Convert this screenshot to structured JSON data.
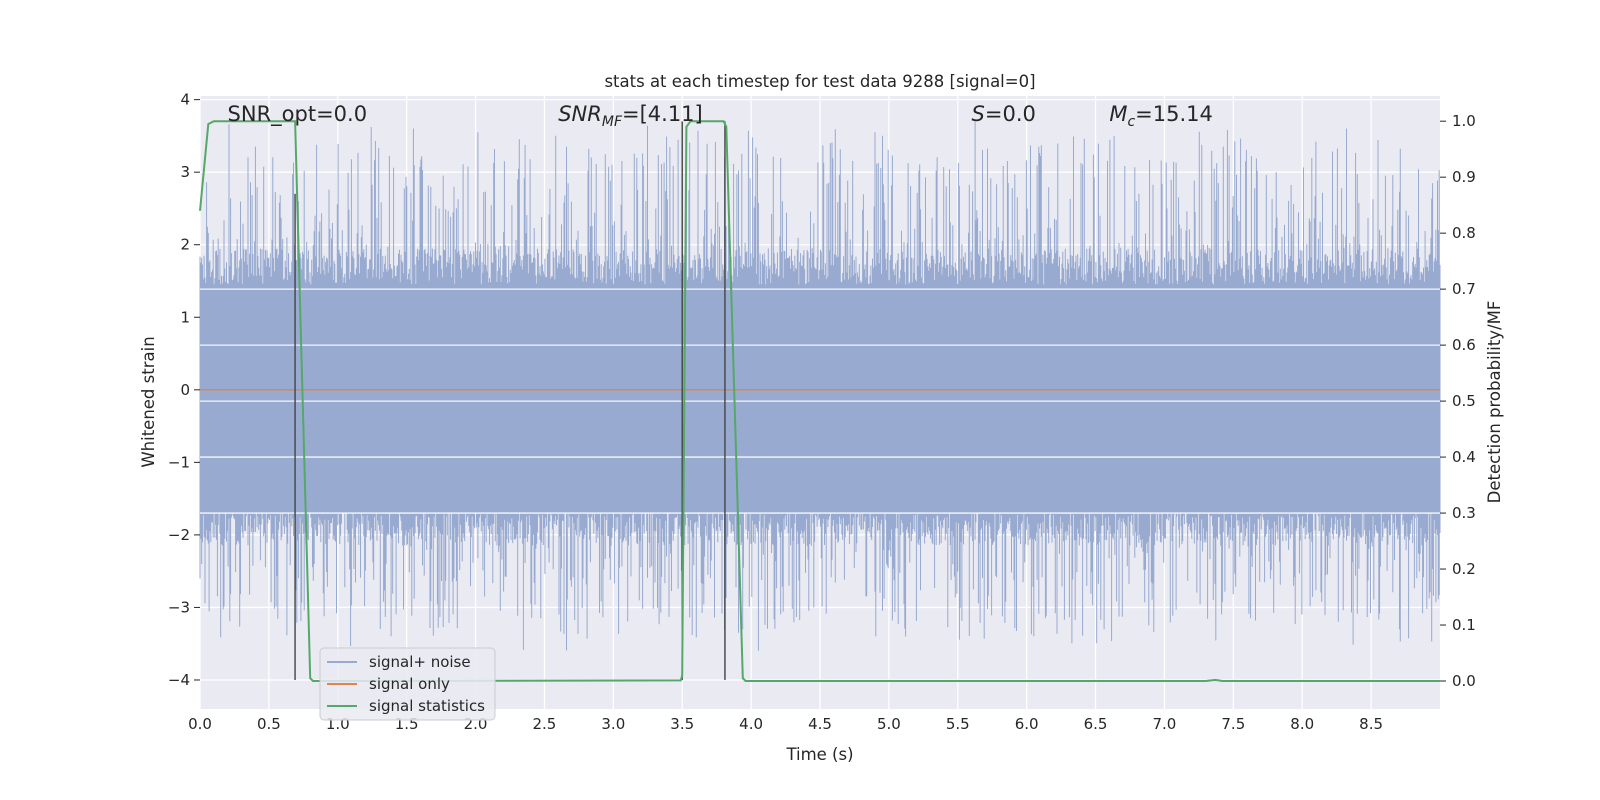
{
  "chart_data": {
    "type": "line",
    "title": "stats at each timestep for test data 9288 [signal=0]",
    "xlabel": "Time (s)",
    "ylabel": "Whitened strain",
    "y2label": "Detection probability/MF",
    "xlim": [
      0.0,
      9.0
    ],
    "ylim": [
      -4.4,
      4.05
    ],
    "y2lim": [
      -0.05,
      1.045
    ],
    "x_ticks": [
      "0.0",
      "0.5",
      "1.0",
      "1.5",
      "2.0",
      "2.5",
      "3.0",
      "3.5",
      "4.0",
      "4.5",
      "5.0",
      "5.5",
      "6.0",
      "6.5",
      "7.0",
      "7.5",
      "8.0",
      "8.5"
    ],
    "y_ticks": [
      "4",
      "3",
      "2",
      "1",
      "0",
      "−1",
      "−2",
      "−3",
      "−4"
    ],
    "y2_ticks": [
      "1.0",
      "0.9",
      "0.8",
      "0.7",
      "0.6",
      "0.5",
      "0.4",
      "0.3",
      "0.2",
      "0.1",
      "0.0"
    ],
    "grid": true,
    "legend_position": "lower-left",
    "colors": {
      "noise": "#98aacf",
      "signal": "#dd8452",
      "stats": "#55a868",
      "vlines": "#444444",
      "plot_bg": "#eaeaf2",
      "grid": "#ffffff"
    },
    "annotations": [
      {
        "id": "snr-opt",
        "text": "SNR_opt=0.0",
        "italic": false,
        "x": 0.2,
        "y": 3.8
      },
      {
        "id": "snr-mf",
        "text": "SNR_MF=[4.11]",
        "italic": true,
        "x": 2.6,
        "y": 3.8
      },
      {
        "id": "s-value",
        "text": "S=0.0",
        "italic": true,
        "x": 5.6,
        "y": 3.8
      },
      {
        "id": "mc-value",
        "text": "M_c=15.14",
        "italic": true,
        "x": 6.6,
        "y": 3.8
      }
    ],
    "vertical_lines": [
      {
        "x": 0.69,
        "y_from": 2.7,
        "y_to": -4.0
      },
      {
        "x": 3.5,
        "y_from": 3.7,
        "y_to": -4.0
      },
      {
        "x": 3.81,
        "y_from": 3.7,
        "y_to": -4.0
      }
    ],
    "series": [
      {
        "name": "signal+ noise",
        "kind": "noise-band",
        "x_start": 0.0,
        "x_end": 9.0,
        "typical_band": [
          -1.8,
          1.6
        ],
        "peak_max": 3.7,
        "peak_min": -3.6
      },
      {
        "name": "signal only",
        "kind": "line",
        "x": [
          0.0,
          9.0
        ],
        "values": [
          0.0,
          0.0
        ]
      },
      {
        "name": "signal statistics",
        "kind": "line",
        "axis": "right",
        "x": [
          0.0,
          0.06,
          0.1,
          0.2,
          0.69,
          0.8,
          0.82,
          1.0,
          3.49,
          3.5,
          3.53,
          3.56,
          3.8,
          3.82,
          3.94,
          3.96,
          7.3,
          7.37,
          7.42,
          7.5,
          9.0
        ],
        "values": [
          0.84,
          0.995,
          1.0,
          1.0,
          1.0,
          0.005,
          0.0,
          0.0,
          0.001,
          0.01,
          0.99,
          1.0,
          1.0,
          0.99,
          0.005,
          0.0,
          0.0,
          0.002,
          0.0,
          0.0,
          0.0
        ]
      }
    ]
  }
}
